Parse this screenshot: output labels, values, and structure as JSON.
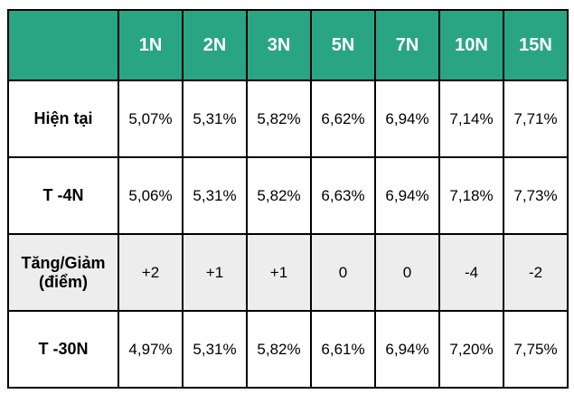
{
  "table": {
    "corner_label": "",
    "columns": [
      "1N",
      "2N",
      "3N",
      "5N",
      "7N",
      "10N",
      "15N"
    ],
    "rows": [
      {
        "label": "Hiện tại",
        "shaded": false,
        "values": [
          "5,07%",
          "5,31%",
          "5,82%",
          "6,62%",
          "6,94%",
          "7,14%",
          "7,71%"
        ]
      },
      {
        "label": "T -4N",
        "shaded": false,
        "values": [
          "5,06%",
          "5,31%",
          "5,82%",
          "6,63%",
          "6,94%",
          "7,18%",
          "7,73%"
        ]
      },
      {
        "label": "Tăng/Giảm (điểm)",
        "shaded": true,
        "values": [
          "+2",
          "+1",
          "+1",
          "0",
          "0",
          "-4",
          "-2"
        ]
      },
      {
        "label": "T -30N",
        "shaded": false,
        "values": [
          "4,97%",
          "5,31%",
          "5,82%",
          "6,61%",
          "6,94%",
          "7,20%",
          "7,75%"
        ]
      }
    ],
    "colors": {
      "header_bg": "#2aa584",
      "header_text": "#ffffff",
      "shaded_row_bg": "#ededed",
      "border": "#000000"
    }
  },
  "chart_data": {
    "type": "table",
    "title": "",
    "categories": [
      "1N",
      "2N",
      "3N",
      "5N",
      "7N",
      "10N",
      "15N"
    ],
    "series": [
      {
        "name": "Hiện tại",
        "values": [
          "5,07%",
          "5,31%",
          "5,82%",
          "6,62%",
          "6,94%",
          "7,14%",
          "7,71%"
        ]
      },
      {
        "name": "T -4N",
        "values": [
          "5,06%",
          "5,31%",
          "5,82%",
          "6,63%",
          "6,94%",
          "7,18%",
          "7,73%"
        ]
      },
      {
        "name": "Tăng/Giảm (điểm)",
        "values": [
          "+2",
          "+1",
          "+1",
          "0",
          "0",
          "-4",
          "-2"
        ]
      },
      {
        "name": "T -30N",
        "values": [
          "4,97%",
          "5,31%",
          "5,82%",
          "6,61%",
          "6,94%",
          "7,20%",
          "7,75%"
        ]
      }
    ]
  }
}
